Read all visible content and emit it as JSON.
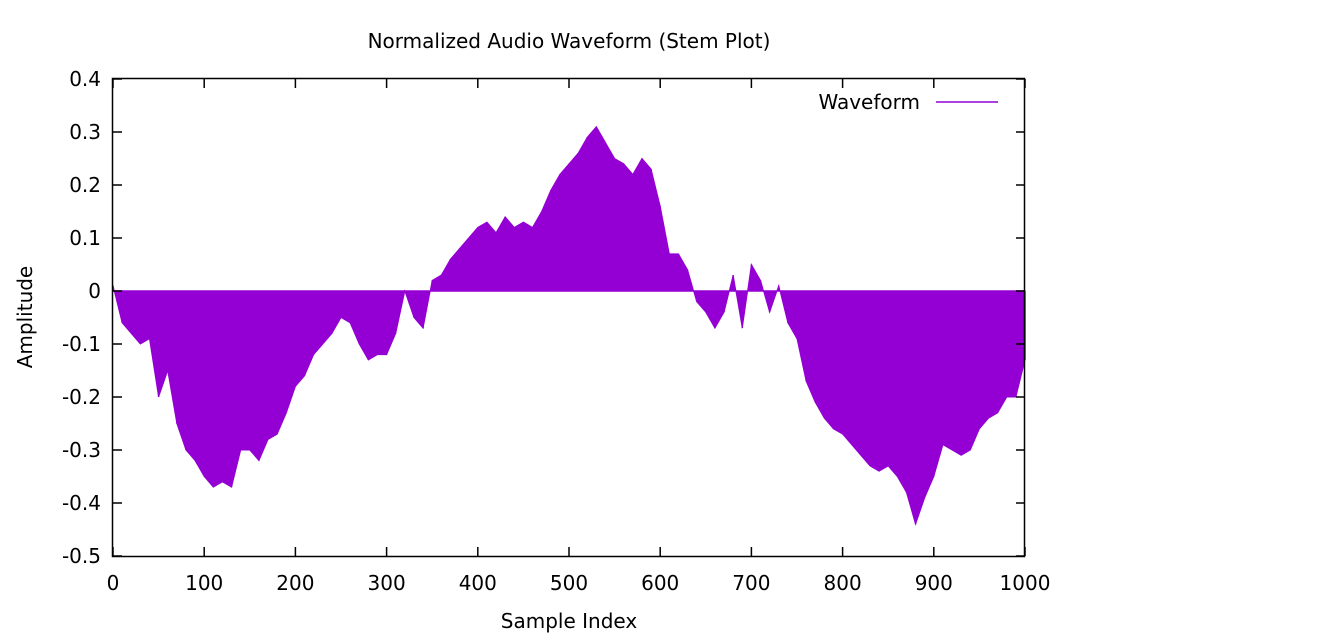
{
  "chart_data": {
    "type": "stem",
    "title": "Normalized Audio Waveform (Stem Plot)",
    "xlabel": "Sample Index",
    "ylabel": "Amplitude",
    "xlim": [
      0,
      1000
    ],
    "ylim": [
      -0.5,
      0.4
    ],
    "xticks": [
      0,
      100,
      200,
      300,
      400,
      500,
      600,
      700,
      800,
      900,
      1000
    ],
    "xtick_labels": [
      "0",
      "100",
      "200",
      "300",
      "400",
      "500",
      "600",
      "700",
      "800",
      "900",
      "1000"
    ],
    "yticks": [
      0.4,
      0.3,
      0.2,
      0.1,
      0,
      -0.1,
      -0.2,
      -0.3,
      -0.4,
      -0.5
    ],
    "ytick_labels": [
      "0.4",
      "0.3",
      "0.2",
      "0.1",
      "0",
      "-0.1",
      "-0.2",
      "-0.3",
      "-0.4",
      "-0.5"
    ],
    "grid": false,
    "legend_position": "top-right",
    "series": [
      {
        "name": "Waveform",
        "color": "#9400d3",
        "x": [
          0,
          10,
          20,
          30,
          40,
          50,
          60,
          70,
          80,
          90,
          100,
          110,
          120,
          130,
          140,
          150,
          160,
          170,
          180,
          190,
          200,
          210,
          220,
          230,
          240,
          250,
          260,
          270,
          280,
          290,
          300,
          310,
          320,
          330,
          340,
          350,
          360,
          370,
          380,
          390,
          400,
          410,
          420,
          430,
          440,
          450,
          460,
          470,
          480,
          490,
          500,
          510,
          520,
          530,
          540,
          550,
          560,
          570,
          580,
          590,
          600,
          610,
          620,
          630,
          640,
          650,
          660,
          670,
          680,
          690,
          700,
          710,
          720,
          730,
          740,
          750,
          760,
          770,
          780,
          790,
          800,
          810,
          820,
          830,
          840,
          850,
          860,
          870,
          880,
          890,
          900,
          910,
          920,
          930,
          940,
          950,
          960,
          970,
          980,
          990,
          1000
        ],
        "y": [
          0.01,
          -0.06,
          -0.08,
          -0.1,
          -0.09,
          -0.2,
          -0.15,
          -0.25,
          -0.3,
          -0.32,
          -0.35,
          -0.37,
          -0.36,
          -0.37,
          -0.3,
          -0.3,
          -0.32,
          -0.28,
          -0.27,
          -0.23,
          -0.18,
          -0.16,
          -0.12,
          -0.1,
          -0.08,
          -0.05,
          -0.06,
          -0.1,
          -0.13,
          -0.12,
          -0.12,
          -0.08,
          0.0,
          -0.05,
          -0.07,
          0.02,
          0.03,
          0.06,
          0.08,
          0.1,
          0.12,
          0.13,
          0.11,
          0.14,
          0.12,
          0.13,
          0.12,
          0.15,
          0.19,
          0.22,
          0.24,
          0.26,
          0.29,
          0.31,
          0.28,
          0.25,
          0.24,
          0.22,
          0.25,
          0.23,
          0.16,
          0.07,
          0.07,
          0.04,
          -0.02,
          -0.04,
          -0.07,
          -0.04,
          0.03,
          -0.07,
          0.05,
          0.02,
          -0.04,
          0.01,
          -0.06,
          -0.09,
          -0.17,
          -0.21,
          -0.24,
          -0.26,
          -0.27,
          -0.29,
          -0.31,
          -0.33,
          -0.34,
          -0.33,
          -0.35,
          -0.38,
          -0.44,
          -0.39,
          -0.35,
          -0.29,
          -0.3,
          -0.31,
          -0.3,
          -0.26,
          -0.24,
          -0.23,
          -0.2,
          -0.2,
          -0.13
        ]
      }
    ]
  }
}
